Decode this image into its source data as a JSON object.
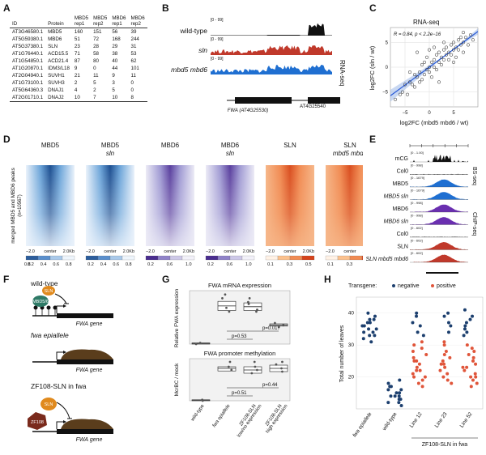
{
  "panel_labels": [
    "A",
    "B",
    "C",
    "D",
    "E",
    "F",
    "G",
    "H"
  ],
  "panelA": {
    "headers": [
      "ID",
      "Protein",
      "MBD5\nrep1",
      "MBD5\nrep2",
      "MBD6\nrep1",
      "MBD6\nrep2"
    ],
    "rows": [
      [
        "AT3G46580.1",
        "MBD5",
        "160",
        "151",
        "56",
        "39"
      ],
      [
        "AT5G59380.1",
        "MBD6",
        "51",
        "72",
        "168",
        "244"
      ],
      [
        "AT5G37380.1",
        "SLN",
        "23",
        "28",
        "29",
        "31"
      ],
      [
        "AT1G76440.1",
        "ACD15.5",
        "71",
        "58",
        "38",
        "53"
      ],
      [
        "AT1G54850.1",
        "ACD21.4",
        "87",
        "80",
        "40",
        "62"
      ],
      [
        "AT1G20870.1",
        "IDM3/L18",
        "9",
        "0",
        "44",
        "101"
      ],
      [
        "AT2G04940.1",
        "SUVH1",
        "21",
        "11",
        "9",
        "11"
      ],
      [
        "AT1G73100.1",
        "SUVH3",
        "2",
        "5",
        "3",
        "0"
      ],
      [
        "AT5G64360.3",
        "DNAJ1",
        "4",
        "2",
        "5",
        "0"
      ],
      [
        "AT2G01710.1",
        "DNAJ2",
        "10",
        "7",
        "10",
        "8"
      ]
    ]
  },
  "panelB": {
    "tracks": [
      {
        "name": "wild-type",
        "italic": false,
        "range": "[0 - 99]",
        "color": "#111111"
      },
      {
        "name": "sln",
        "italic": true,
        "range": "[0 - 99]",
        "color": "#c0392b"
      },
      {
        "name": "mbd5 mbd6",
        "italic": true,
        "range": "[0 - 99]",
        "color": "#1f6fd1"
      }
    ],
    "side_label": "RNA-seq",
    "gene1": "FWA (AT4G25530)",
    "gene2": "AT4G25540"
  },
  "panelC": {
    "title": "RNA-seq",
    "stats": "R = 0.84, p < 2.2e−16",
    "xlabel": "log2FC (mbd5 mbd6 / wt)",
    "ylabel": "log2FC (sln / wt)",
    "xticks": [
      "−5",
      "0",
      "5"
    ],
    "yticks": [
      "5",
      "0",
      "−5"
    ],
    "chart_data": {
      "type": "scatter",
      "xlim": [
        -8,
        10
      ],
      "ylim": [
        -8,
        8
      ],
      "points": [
        [
          -7,
          -6.5
        ],
        [
          -6,
          -5.5
        ],
        [
          -5.5,
          -5
        ],
        [
          -5,
          -3.5
        ],
        [
          -4.5,
          -5.5
        ],
        [
          -4,
          -3
        ],
        [
          -3.5,
          -3.5
        ],
        [
          -3,
          -4
        ],
        [
          -3,
          -1.5
        ],
        [
          -2.5,
          -2
        ],
        [
          -2,
          -3
        ],
        [
          -2,
          -1
        ],
        [
          -1.5,
          -2.5
        ],
        [
          -1.5,
          0.5
        ],
        [
          -1,
          -1.5
        ],
        [
          -1,
          1
        ],
        [
          -0.5,
          -0.5
        ],
        [
          -0.5,
          2
        ],
        [
          0,
          0
        ],
        [
          0,
          -1
        ],
        [
          0.5,
          1
        ],
        [
          0.5,
          -2
        ],
        [
          1,
          1.5
        ],
        [
          1,
          0
        ],
        [
          1.5,
          2.5
        ],
        [
          1.5,
          -0.5
        ],
        [
          2,
          1
        ],
        [
          2,
          3
        ],
        [
          2.5,
          2
        ],
        [
          2.5,
          0.5
        ],
        [
          3,
          3.5
        ],
        [
          3,
          1.5
        ],
        [
          3.5,
          2.5
        ],
        [
          3.5,
          4
        ],
        [
          4,
          3
        ],
        [
          4,
          1.5
        ],
        [
          4.5,
          4.5
        ],
        [
          4.5,
          2.5
        ],
        [
          5,
          3.5
        ],
        [
          5,
          5
        ],
        [
          5.5,
          4
        ],
        [
          5.5,
          2
        ],
        [
          6,
          5.5
        ],
        [
          6,
          3.5
        ],
        [
          6.5,
          4.5
        ],
        [
          6.5,
          6
        ],
        [
          7,
          5
        ],
        [
          7,
          3
        ],
        [
          7.5,
          6
        ],
        [
          8,
          4.5
        ],
        [
          8.5,
          6.5
        ],
        [
          9,
          5.5
        ],
        [
          -2.5,
          3
        ],
        [
          0,
          3.5
        ],
        [
          2,
          -3
        ],
        [
          3,
          5
        ],
        [
          1,
          4
        ],
        [
          -4,
          -1
        ],
        [
          5,
          1
        ],
        [
          7,
          7
        ]
      ],
      "regression": true
    }
  },
  "panelD": {
    "heatmaps": [
      {
        "line1": "MBD5",
        "line2": "",
        "italic2": false,
        "theme": "blue",
        "legend": [
          "0.2",
          "0.4",
          "0.6",
          "0.8"
        ]
      },
      {
        "line1": "MBD5",
        "line2": "sln",
        "italic2": true,
        "theme": "blue",
        "legend": [
          "0.2",
          "0.4",
          "0.6",
          "0.8"
        ]
      },
      {
        "line1": "MBD6",
        "line2": "",
        "italic2": false,
        "theme": "purple",
        "legend": [
          "0.2",
          "0.6",
          "1.0"
        ]
      },
      {
        "line1": "MBD6",
        "line2": "sln",
        "italic2": true,
        "theme": "purple",
        "legend": [
          "0.2",
          "0.6",
          "1.0"
        ]
      },
      {
        "line1": "SLN",
        "line2": "",
        "italic2": false,
        "theme": "red",
        "legend": [
          "0.1",
          "0.3",
          "0.5"
        ]
      },
      {
        "line1": "SLN",
        "line2": "mbd5 mbd6",
        "italic2": true,
        "theme": "red",
        "legend": [
          "0.1",
          "0.3",
          "0.5"
        ]
      }
    ],
    "ylabel": "merged MBD5 and MBD6 peaks",
    "ylabel_n": "(n=10567)",
    "x_left": "−2.0",
    "x_center": "center",
    "x_right": "2.0Kb",
    "legend_low": "0.8"
  },
  "panelE": {
    "tracks": [
      {
        "name": "mCG",
        "range": "[0 - 1.00]",
        "color": "#111111",
        "italic": false
      },
      {
        "name": "Col0",
        "range": "[0 - 998]",
        "color": "#111111",
        "italic": false
      },
      {
        "name": "MBD5",
        "range": "[0 - 1679]",
        "color": "#1f6fd1",
        "italic": false
      },
      {
        "name": "MBD5 sln",
        "range": "[0 - 1679]",
        "color": "#1f6fd1",
        "italic": true
      },
      {
        "name": "MBD6",
        "range": "[0 - 998]",
        "color": "#6a2fb0",
        "italic": false
      },
      {
        "name": "MBD6 sln",
        "range": "[0 - 998]",
        "color": "#6a2fb0",
        "italic": true
      },
      {
        "name": "Col0",
        "range": "[0 - 602]",
        "color": "#111111",
        "italic": false
      },
      {
        "name": "SLN",
        "range": "[0 - 602]",
        "color": "#c0392b",
        "italic": false
      },
      {
        "name": "SLN mbd5 mbd6",
        "range": "[0 - 602]",
        "color": "#c0392b",
        "italic": true
      }
    ],
    "bs_label": "BS-seq",
    "chip_label": "ChIP-seq"
  },
  "panelF": {
    "wt_title": "wild-type",
    "fwa_title": "fwa epiallele",
    "zf_title": "ZF108-SLN in fwa",
    "gene": "FWA gene",
    "sln": "SLN",
    "mbd": "MBD5/6",
    "zf": "ZF108"
  },
  "panelG": {
    "top_title": "FWA mRNA expression",
    "top_ylabel": "Relative FWA expression",
    "bottom_title": "FWA promoter methylation",
    "bottom_ylabel": "McrBC / mock",
    "p_top": [
      "p=0.017",
      "p=0.53"
    ],
    "p_bottom": [
      "p=0.44",
      "p=0.51"
    ],
    "groups": [
      "wild-type",
      "fwa epiallele",
      "ZF108-SLN low/no expression",
      "ZF108-SLN high expression"
    ],
    "chart_data": [
      {
        "type": "box",
        "title": "FWA mRNA expression",
        "ylim": [
          0,
          1.4
        ],
        "boxes": [
          {
            "q1": 0.0,
            "med": 0.02,
            "q3": 0.03
          },
          {
            "q1": 0.88,
            "med": 1.0,
            "q3": 1.12
          },
          {
            "q1": 0.88,
            "med": 0.98,
            "q3": 1.08
          },
          {
            "q1": 0.47,
            "med": 0.5,
            "q3": 0.53
          }
        ],
        "points": [
          [
            0,
            0.0
          ],
          [
            0,
            0.03
          ],
          [
            1,
            0.95
          ],
          [
            1,
            1.2
          ],
          [
            1,
            0.85
          ],
          [
            1,
            1.3
          ],
          [
            2,
            0.9
          ],
          [
            2,
            1.05
          ],
          [
            2,
            1.1
          ],
          [
            2,
            1.2
          ],
          [
            2,
            0.85
          ],
          [
            3,
            0.5
          ],
          [
            3,
            0.55
          ],
          [
            3,
            0.45
          ]
        ]
      },
      {
        "type": "box",
        "title": "FWA promoter methylation",
        "ylim": [
          0,
          1.3
        ],
        "boxes": [
          {
            "q1": 0.0,
            "med": 0.02,
            "q3": 0.03
          },
          {
            "q1": 0.92,
            "med": 1.0,
            "q3": 1.05
          },
          {
            "q1": 0.85,
            "med": 0.95,
            "q3": 1.05
          },
          {
            "q1": 0.9,
            "med": 1.0,
            "q3": 1.1
          }
        ],
        "points": [
          [
            0,
            0.0
          ],
          [
            0,
            0.03
          ],
          [
            1,
            0.95
          ],
          [
            1,
            1.05
          ],
          [
            1,
            1.2
          ],
          [
            2,
            0.85
          ],
          [
            2,
            0.95
          ],
          [
            2,
            1.05
          ],
          [
            2,
            1.2
          ],
          [
            3,
            0.9
          ],
          [
            3,
            1.0
          ],
          [
            3,
            1.12
          ],
          [
            3,
            1.2
          ]
        ]
      }
    ]
  },
  "panelH": {
    "legend_title": "Transgene:",
    "legend_neg": "negative",
    "legend_pos": "positive",
    "ylabel": "Total number of leaves",
    "yticks": [
      "40",
      "30",
      "20"
    ],
    "xlabels": [
      "fwa epiallele",
      "wild-type",
      "Line 12",
      "Line 23",
      "Line 52"
    ],
    "xsub": "ZF108-SLN in fwa",
    "colors": {
      "negative": "#1c3f6e",
      "positive": "#e0553a"
    },
    "chart_data": {
      "type": "scatter",
      "ylim": [
        10,
        45
      ],
      "groups": [
        {
          "name": "fwa epiallele",
          "negative": [
            40,
            39,
            38,
            38,
            37,
            37,
            36,
            36,
            35,
            35,
            34,
            34,
            33,
            33,
            32,
            31
          ]
        },
        {
          "name": "wild-type",
          "negative": [
            19,
            18,
            17,
            17,
            16,
            16,
            15,
            15,
            14,
            14,
            14,
            13,
            13,
            12,
            12,
            11
          ]
        },
        {
          "name": "Line 12",
          "negative": [
            40,
            39,
            37,
            36,
            34,
            33
          ],
          "positive": [
            31,
            30,
            29,
            28,
            27,
            26,
            25,
            25,
            24,
            23,
            22,
            22,
            21,
            20,
            20,
            19,
            18,
            17
          ]
        },
        {
          "name": "Line 23",
          "negative": [
            40,
            39,
            37,
            36,
            34
          ],
          "positive": [
            31,
            30,
            28,
            27,
            26,
            25,
            24,
            24,
            23,
            22,
            21,
            20,
            19,
            18
          ]
        },
        {
          "name": "Line 52",
          "negative": [
            41,
            39,
            38,
            37,
            36,
            35,
            34,
            33
          ],
          "positive": [
            30,
            29,
            28,
            27,
            26,
            25,
            24,
            23,
            23,
            22,
            21,
            20,
            20,
            19,
            18,
            17
          ]
        }
      ]
    }
  }
}
